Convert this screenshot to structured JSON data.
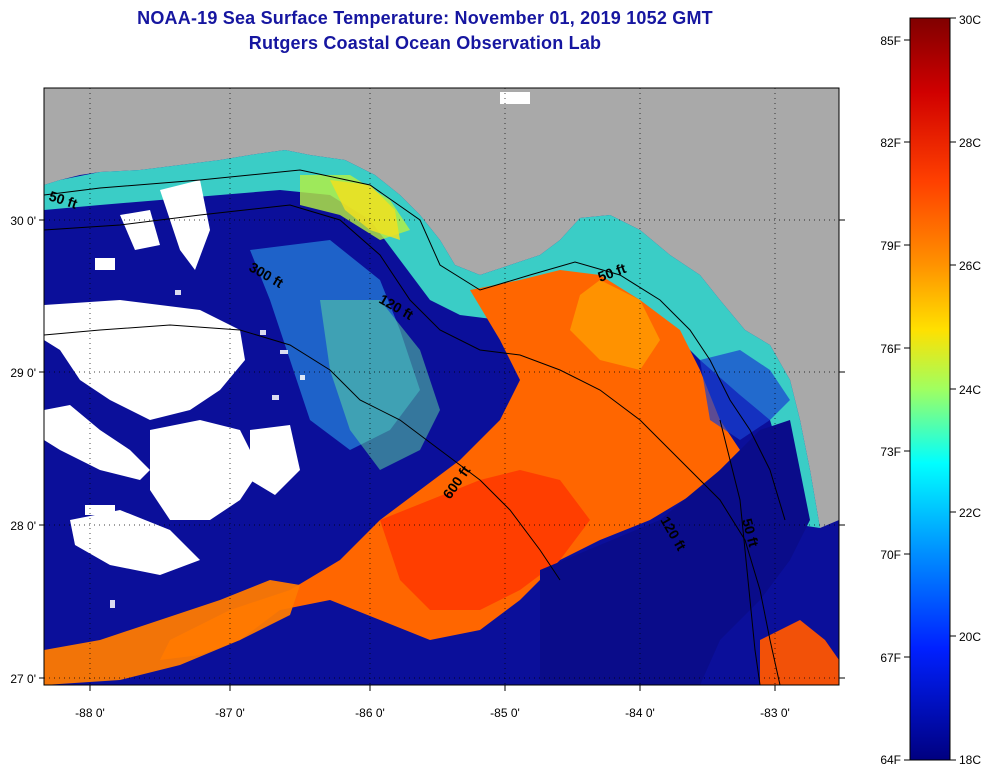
{
  "header": {
    "title": "NOAA-19 Sea Surface Temperature:  November 01, 2019 1052 GMT",
    "subtitle": "Rutgers Coastal Ocean Observation Lab"
  },
  "map": {
    "latitude_labels": [
      "30 0'",
      "29 0'",
      "28 0'",
      "27 0'"
    ],
    "longitude_labels": [
      "-88 0'",
      "-87 0'",
      "-86 0'",
      "-85 0'",
      "-84 0'",
      "-83 0'"
    ],
    "contour_labels": [
      "50 ft",
      "300 ft",
      "120 ft",
      "600 ft",
      "50 ft",
      "120 ft",
      "50 ft"
    ],
    "colors": {
      "land": "#a9a9a9",
      "cloud": "#ffffff",
      "cold_water": "#00008c",
      "warm_water": "#ff5500",
      "contour": "#000000"
    }
  },
  "colorbar": {
    "celsius_labels": [
      "30C",
      "28C",
      "26C",
      "24C",
      "22C",
      "20C",
      "18C"
    ],
    "fahrenheit_labels": [
      "85F",
      "82F",
      "79F",
      "76F",
      "73F",
      "70F",
      "67F",
      "64F"
    ],
    "gradient": [
      "#800000",
      "#ff0000",
      "#ff8000",
      "#ffff00",
      "#80ff80",
      "#00ffff",
      "#0080ff",
      "#0000ff",
      "#000080"
    ]
  }
}
